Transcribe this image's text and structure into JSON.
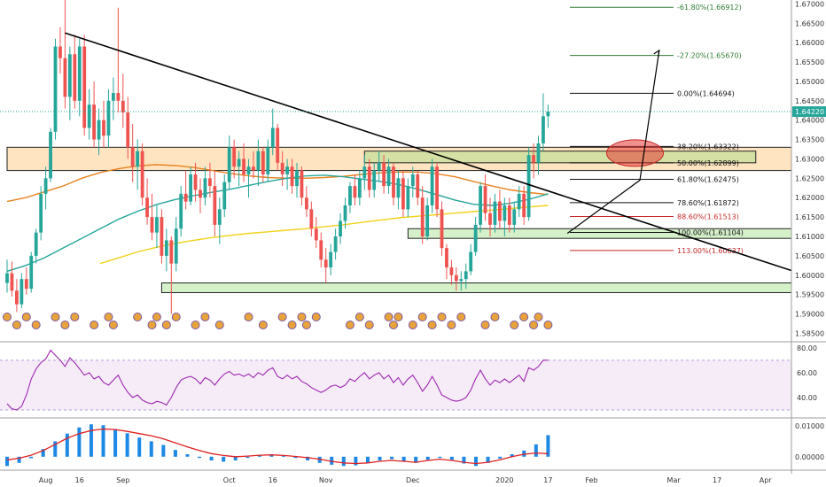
{
  "chart_data": {
    "type": "candlestick",
    "price_axis_ticks": [
      "1.67000",
      "1.66500",
      "1.66000",
      "1.65500",
      "1.65000",
      "1.64500",
      "1.64000",
      "1.63500",
      "1.63000",
      "1.62500",
      "1.62000",
      "1.61500",
      "1.61000",
      "1.60500",
      "1.60000",
      "1.59500",
      "1.59000",
      "1.58500"
    ],
    "price_range": [
      1.5835,
      1.671
    ],
    "current_price": "1.64220",
    "x_axis_labels": [
      {
        "label": "Aug",
        "bar": 8
      },
      {
        "label": "16",
        "bar": 15
      },
      {
        "label": "Sep",
        "bar": 24
      },
      {
        "label": "Oct",
        "bar": 46
      },
      {
        "label": "16",
        "bar": 55
      },
      {
        "label": "Nov",
        "bar": 66
      },
      {
        "label": "Dec",
        "bar": 84
      },
      {
        "label": "2020",
        "bar": 103
      },
      {
        "label": "17",
        "bar": 112
      },
      {
        "label": "Feb",
        "bar": 121
      },
      {
        "label": "Mar",
        "bar": 138
      },
      {
        "label": "17",
        "bar": 147
      },
      {
        "label": "Apr",
        "bar": 157
      }
    ],
    "fibonacci_levels": [
      {
        "label": "-61.80%(1.66912)",
        "value": 1.66912,
        "color": "#2e7d32"
      },
      {
        "label": "-27.20%(1.65670)",
        "value": 1.6567,
        "color": "#2e7d32"
      },
      {
        "label": "0.00%(1.64694)",
        "value": 1.64694,
        "color": "#111111"
      },
      {
        "label": "38.20%(1.63322)",
        "value": 1.63322,
        "color": "#111111"
      },
      {
        "label": "50.00%(1.62899)",
        "value": 1.62899,
        "color": "#111111"
      },
      {
        "label": "61.80%(1.62475)",
        "value": 1.62475,
        "color": "#111111"
      },
      {
        "label": "78.60%(1.61872)",
        "value": 1.61872,
        "color": "#111111"
      },
      {
        "label": "88.60%(1.61513)",
        "value": 1.61513,
        "color": "#c62828"
      },
      {
        "label": "100.00%(1.61104)",
        "value": 1.61104,
        "color": "#111111"
      },
      {
        "label": "113.00%(1.60637)",
        "value": 1.60637,
        "color": "#c62828"
      }
    ],
    "zones": [
      {
        "type": "resistance-orange",
        "low": 1.627,
        "high": 1.633,
        "x0_bar": 0,
        "x1_bar": 163
      },
      {
        "type": "support-green",
        "low": 1.629,
        "high": 1.632,
        "x0_bar": 74,
        "x1_bar": 155
      },
      {
        "type": "support-green",
        "low": 1.6095,
        "high": 1.612,
        "x0_bar": 83,
        "x1_bar": 163
      },
      {
        "type": "support-green",
        "low": 1.5955,
        "high": 1.598,
        "x0_bar": 32,
        "x1_bar": 163
      }
    ],
    "target_ellipse": {
      "bar": 130,
      "price": 1.6315,
      "color": "#e53935"
    },
    "downtrend_line": [
      [
        12,
        1.6625
      ],
      [
        163,
        1.6012
      ]
    ],
    "projection_arrow": [
      [
        116,
        1.6108
      ],
      [
        131,
        1.6245
      ],
      [
        135,
        1.658
      ]
    ],
    "candles": [
      [
        1.598,
        1.604,
        1.5955,
        1.6005
      ],
      [
        1.6005,
        1.6035,
        1.5945,
        1.596
      ],
      [
        1.596,
        1.599,
        1.5905,
        1.5925
      ],
      [
        1.5925,
        1.6005,
        1.5915,
        1.599
      ],
      [
        1.599,
        1.602,
        1.595,
        1.5965
      ],
      [
        1.5965,
        1.606,
        1.5955,
        1.605
      ],
      [
        1.605,
        1.612,
        1.603,
        1.611
      ],
      [
        1.611,
        1.623,
        1.609,
        1.621
      ],
      [
        1.621,
        1.628,
        1.617,
        1.625
      ],
      [
        1.625,
        1.638,
        1.624,
        1.637
      ],
      [
        1.637,
        1.661,
        1.635,
        1.659
      ],
      [
        1.659,
        1.664,
        1.652,
        1.656
      ],
      [
        1.656,
        1.671,
        1.643,
        1.646
      ],
      [
        1.646,
        1.659,
        1.64,
        1.657
      ],
      [
        1.657,
        1.662,
        1.643,
        1.645
      ],
      [
        1.645,
        1.661,
        1.641,
        1.659
      ],
      [
        1.659,
        1.662,
        1.636,
        1.638
      ],
      [
        1.638,
        1.648,
        1.635,
        1.644
      ],
      [
        1.644,
        1.65,
        1.633,
        1.635
      ],
      [
        1.635,
        1.643,
        1.631,
        1.64
      ],
      [
        1.64,
        1.645,
        1.633,
        1.636
      ],
      [
        1.636,
        1.648,
        1.633,
        1.645
      ],
      [
        1.645,
        1.651,
        1.64,
        1.647
      ],
      [
        1.647,
        1.669,
        1.642,
        1.645
      ],
      [
        1.645,
        1.652,
        1.638,
        1.642
      ],
      [
        1.642,
        1.646,
        1.63,
        1.633
      ],
      [
        1.633,
        1.639,
        1.624,
        1.628
      ],
      [
        1.628,
        1.635,
        1.622,
        1.632
      ],
      [
        1.632,
        1.634,
        1.618,
        1.62
      ],
      [
        1.62,
        1.625,
        1.613,
        1.615
      ],
      [
        1.615,
        1.621,
        1.609,
        1.611
      ],
      [
        1.611,
        1.618,
        1.607,
        1.615
      ],
      [
        1.615,
        1.617,
        1.603,
        1.605
      ],
      [
        1.605,
        1.612,
        1.601,
        1.609
      ],
      [
        1.609,
        1.61,
        1.59,
        1.603
      ],
      [
        1.603,
        1.615,
        1.601,
        1.612
      ],
      [
        1.612,
        1.623,
        1.61,
        1.621
      ],
      [
        1.621,
        1.627,
        1.617,
        1.619
      ],
      [
        1.619,
        1.628,
        1.618,
        1.626
      ],
      [
        1.626,
        1.629,
        1.619,
        1.622
      ],
      [
        1.622,
        1.625,
        1.616,
        1.62
      ],
      [
        1.62,
        1.628,
        1.618,
        1.625
      ],
      [
        1.625,
        1.629,
        1.62,
        1.623
      ],
      [
        1.623,
        1.627,
        1.61,
        1.613
      ],
      [
        1.613,
        1.62,
        1.608,
        1.617
      ],
      [
        1.617,
        1.626,
        1.615,
        1.624
      ],
      [
        1.624,
        1.636,
        1.622,
        1.633
      ],
      [
        1.633,
        1.635,
        1.625,
        1.628
      ],
      [
        1.628,
        1.632,
        1.623,
        1.63
      ],
      [
        1.63,
        1.634,
        1.624,
        1.626
      ],
      [
        1.626,
        1.63,
        1.62,
        1.628
      ],
      [
        1.628,
        1.632,
        1.625,
        1.627
      ],
      [
        1.627,
        1.635,
        1.623,
        1.632
      ],
      [
        1.632,
        1.633,
        1.624,
        1.626
      ],
      [
        1.626,
        1.635,
        1.624,
        1.633
      ],
      [
        1.633,
        1.643,
        1.631,
        1.638
      ],
      [
        1.638,
        1.639,
        1.627,
        1.629
      ],
      [
        1.629,
        1.632,
        1.623,
        1.626
      ],
      [
        1.626,
        1.63,
        1.622,
        1.628
      ],
      [
        1.628,
        1.63,
        1.621,
        1.623
      ],
      [
        1.623,
        1.629,
        1.62,
        1.627
      ],
      [
        1.627,
        1.628,
        1.618,
        1.62
      ],
      [
        1.62,
        1.623,
        1.615,
        1.617
      ],
      [
        1.617,
        1.619,
        1.61,
        1.612
      ],
      [
        1.612,
        1.615,
        1.607,
        1.609
      ],
      [
        1.609,
        1.611,
        1.602,
        1.604
      ],
      [
        1.604,
        1.607,
        1.598,
        1.602
      ],
      [
        1.602,
        1.608,
        1.6,
        1.606
      ],
      [
        1.606,
        1.612,
        1.604,
        1.61
      ],
      [
        1.61,
        1.616,
        1.608,
        1.614
      ],
      [
        1.614,
        1.62,
        1.612,
        1.618
      ],
      [
        1.618,
        1.624,
        1.616,
        1.623
      ],
      [
        1.623,
        1.626,
        1.618,
        1.62
      ],
      [
        1.62,
        1.627,
        1.618,
        1.625
      ],
      [
        1.625,
        1.631,
        1.622,
        1.628
      ],
      [
        1.628,
        1.63,
        1.62,
        1.622
      ],
      [
        1.622,
        1.629,
        1.62,
        1.627
      ],
      [
        1.627,
        1.632,
        1.624,
        1.629
      ],
      [
        1.629,
        1.631,
        1.621,
        1.623
      ],
      [
        1.623,
        1.63,
        1.621,
        1.628
      ],
      [
        1.628,
        1.629,
        1.618,
        1.62
      ],
      [
        1.62,
        1.627,
        1.617,
        1.625
      ],
      [
        1.625,
        1.627,
        1.615,
        1.617
      ],
      [
        1.617,
        1.625,
        1.615,
        1.623
      ],
      [
        1.623,
        1.628,
        1.62,
        1.626
      ],
      [
        1.626,
        1.627,
        1.618,
        1.62
      ],
      [
        1.62,
        1.623,
        1.608,
        1.61
      ],
      [
        1.61,
        1.62,
        1.609,
        1.618
      ],
      [
        1.618,
        1.63,
        1.616,
        1.628
      ],
      [
        1.628,
        1.629,
        1.615,
        1.617
      ],
      [
        1.617,
        1.619,
        1.605,
        1.607
      ],
      [
        1.607,
        1.608,
        1.599,
        1.602
      ],
      [
        1.602,
        1.604,
        1.5975,
        1.6
      ],
      [
        1.6,
        1.602,
        1.596,
        1.5985
      ],
      [
        1.5985,
        1.601,
        1.596,
        1.599
      ],
      [
        1.599,
        1.603,
        1.5965,
        1.601
      ],
      [
        1.601,
        1.608,
        1.6,
        1.606
      ],
      [
        1.606,
        1.615,
        1.605,
        1.613
      ],
      [
        1.613,
        1.624,
        1.611,
        1.623
      ],
      [
        1.623,
        1.626,
        1.614,
        1.616
      ],
      [
        1.616,
        1.62,
        1.61,
        1.613
      ],
      [
        1.613,
        1.621,
        1.611,
        1.619
      ],
      [
        1.619,
        1.622,
        1.612,
        1.614
      ],
      [
        1.614,
        1.62,
        1.61,
        1.618
      ],
      [
        1.618,
        1.62,
        1.611,
        1.613
      ],
      [
        1.613,
        1.619,
        1.611,
        1.617
      ],
      [
        1.617,
        1.623,
        1.615,
        1.621
      ],
      [
        1.621,
        1.623,
        1.613,
        1.615
      ],
      [
        1.615,
        1.633,
        1.614,
        1.631
      ],
      [
        1.631,
        1.634,
        1.625,
        1.629
      ],
      [
        1.629,
        1.636,
        1.626,
        1.634
      ],
      [
        1.634,
        1.6469,
        1.632,
        1.641
      ],
      [
        1.641,
        1.644,
        1.638,
        1.6422
      ]
    ],
    "moving_averages": [
      {
        "name": "",
        "color": "#e8821e",
        "values": [
          1.619,
          1.62,
          1.6215,
          1.623,
          1.625,
          1.6265,
          1.6275,
          1.6282,
          1.6285,
          1.6283,
          1.6278,
          1.627,
          1.6262,
          1.6256,
          1.6252,
          1.625,
          1.625,
          1.6252,
          1.6255,
          1.626,
          1.6264,
          1.6266,
          1.6266,
          1.6262,
          1.6254,
          1.6242,
          1.623,
          1.622,
          1.6213,
          1.6208
        ]
      },
      {
        "name": "",
        "color": "#26a69a",
        "values": [
          1.601,
          1.6025,
          1.6045,
          1.607,
          1.6095,
          1.612,
          1.6145,
          1.6165,
          1.6182,
          1.6195,
          1.6205,
          1.6214,
          1.6222,
          1.6232,
          1.6242,
          1.625,
          1.6256,
          1.6258,
          1.6254,
          1.6248,
          1.6242,
          1.6234,
          1.6222,
          1.6208,
          1.6194,
          1.6183,
          1.618,
          1.6186,
          1.6196,
          1.621
        ]
      },
      {
        "name": "",
        "color": "#f2d21b",
        "values": [
          null,
          null,
          null,
          null,
          null,
          1.603,
          1.6045,
          1.606,
          1.6072,
          1.6082,
          1.609,
          1.6097,
          1.6103,
          1.6108,
          1.6112,
          1.6116,
          1.612,
          1.6125,
          1.613,
          1.6136,
          1.6142,
          1.6148,
          1.6152,
          1.6156,
          1.616,
          1.6164,
          1.6168,
          1.6172,
          1.6176,
          1.618
        ]
      }
    ],
    "rsi": {
      "ticks": [
        "80.00",
        "60.00",
        "40.00"
      ],
      "range": [
        25,
        82
      ],
      "upper_band": 70,
      "lower_band": 30,
      "values": [
        35,
        31,
        30,
        33,
        42,
        55,
        63,
        68,
        71,
        78,
        74,
        70,
        65,
        72,
        68,
        63,
        58,
        60,
        55,
        57,
        52,
        50,
        54,
        58,
        50,
        44,
        40,
        42,
        38,
        36,
        35,
        37,
        36,
        34,
        40,
        48,
        54,
        56,
        57,
        55,
        51,
        56,
        54,
        50,
        55,
        59,
        61,
        58,
        59,
        57,
        59,
        56,
        60,
        58,
        62,
        64,
        57,
        55,
        58,
        55,
        57,
        53,
        51,
        48,
        46,
        44,
        46,
        49,
        50,
        48,
        50,
        55,
        53,
        57,
        60,
        55,
        58,
        60,
        55,
        58,
        52,
        56,
        50,
        55,
        58,
        52,
        45,
        50,
        57,
        50,
        42,
        40,
        38,
        37,
        38,
        40,
        46,
        55,
        62,
        55,
        50,
        54,
        52,
        55,
        52,
        55,
        58,
        53,
        64,
        62,
        65,
        70,
        70
      ]
    },
    "macd": {
      "ticks": [
        "0.01000",
        "0.00000"
      ],
      "range": [
        -0.0035,
        0.012
      ],
      "macd_color": "#e02020",
      "signal_color": "#1e88e5",
      "macd": [
        -0.001,
        -0.0005,
        0.0005,
        0.002,
        0.004,
        0.006,
        0.0075,
        0.0085,
        0.009,
        0.0088,
        0.0082,
        0.0075,
        0.0068,
        0.0058,
        0.0045,
        0.0032,
        0.002,
        0.001,
        0.0004,
        0.0,
        0.0002,
        0.0005,
        0.0006,
        0.0004,
        0.0001,
        -0.0003,
        -0.0008,
        -0.0015,
        -0.002,
        -0.0022,
        -0.002,
        -0.0015,
        -0.0012,
        -0.0015,
        -0.0018,
        -0.0012,
        -0.0008,
        -0.0012,
        -0.0018,
        -0.0022,
        -0.0018,
        -0.001,
        0.0,
        0.0008,
        0.0012,
        0.001
      ],
      "histogram": [
        -0.003,
        -0.002,
        -0.0005,
        0.0025,
        0.005,
        0.0075,
        0.0095,
        0.0105,
        0.0102,
        0.009,
        0.0076,
        0.0062,
        0.005,
        0.0038,
        0.0022,
        0.0008,
        -0.0004,
        -0.0012,
        -0.0016,
        -0.0012,
        -0.0004,
        0.0004,
        0.0008,
        0.0004,
        -0.0004,
        -0.0012,
        -0.002,
        -0.0026,
        -0.003,
        -0.0028,
        -0.002,
        -0.0012,
        -0.0008,
        -0.0014,
        -0.002,
        -0.001,
        -0.0004,
        -0.001,
        -0.0022,
        -0.003,
        -0.002,
        -0.0006,
        0.0008,
        0.002,
        0.004,
        0.007
      ]
    }
  }
}
